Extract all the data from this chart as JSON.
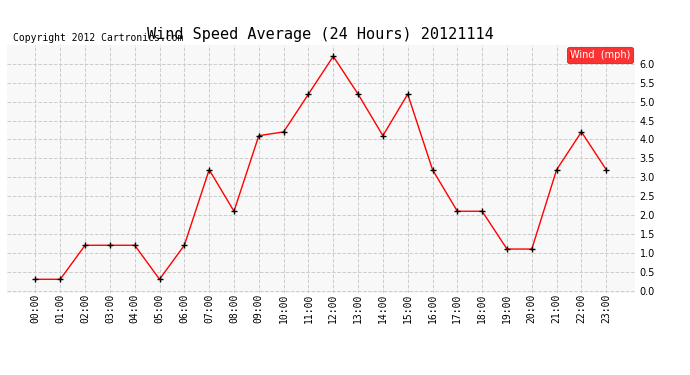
{
  "title": "Wind Speed Average (24 Hours) 20121114",
  "copyright": "Copyright 2012 Cartronics.com",
  "x_labels": [
    "00:00",
    "01:00",
    "02:00",
    "03:00",
    "04:00",
    "05:00",
    "06:00",
    "07:00",
    "08:00",
    "09:00",
    "10:00",
    "11:00",
    "12:00",
    "13:00",
    "14:00",
    "15:00",
    "16:00",
    "17:00",
    "18:00",
    "19:00",
    "20:00",
    "21:00",
    "22:00",
    "23:00"
  ],
  "y_values": [
    0.3,
    0.3,
    1.2,
    1.2,
    1.2,
    0.3,
    1.2,
    3.2,
    2.1,
    4.1,
    4.2,
    5.2,
    6.2,
    5.2,
    4.1,
    5.2,
    3.2,
    2.1,
    2.1,
    1.1,
    1.1,
    3.2,
    4.2,
    3.2
  ],
  "line_color": "red",
  "marker_color": "black",
  "marker_size": 4,
  "grid_color": "#cccccc",
  "background_color": "#f8f8f8",
  "ylim": [
    -0.05,
    6.5
  ],
  "yticks": [
    0.0,
    0.5,
    1.0,
    1.5,
    2.0,
    2.5,
    3.0,
    3.5,
    4.0,
    4.5,
    5.0,
    5.5,
    6.0
  ],
  "legend_label": "Wind  (mph)",
  "legend_bg": "red",
  "legend_text_color": "white",
  "title_fontsize": 11,
  "axis_fontsize": 7,
  "copyright_fontsize": 7
}
